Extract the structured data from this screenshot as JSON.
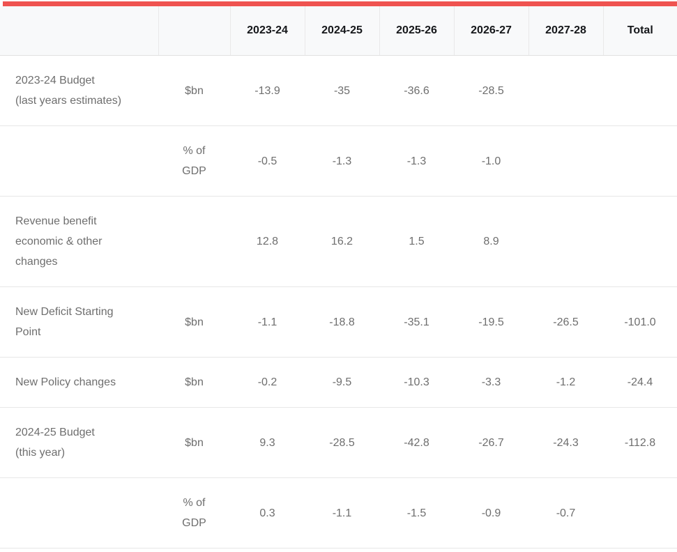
{
  "accent_color": "#ef5350",
  "table": {
    "columns": [
      "",
      "",
      "2023-24",
      "2024-25",
      "2025-26",
      "2026-27",
      "2027-28",
      "Total"
    ],
    "rows": [
      {
        "label": "2023-24 Budget\n(last years estimates)",
        "unit": "$bn",
        "values": [
          "-13.9",
          "-35",
          "-36.6",
          "-28.5",
          "",
          ""
        ]
      },
      {
        "label": "",
        "unit": "% of\nGDP",
        "values": [
          "-0.5",
          "-1.3",
          "-1.3",
          "-1.0",
          "",
          ""
        ]
      },
      {
        "label": "Revenue benefit\neconomic & other\nchanges",
        "unit": "",
        "values": [
          "12.8",
          "16.2",
          "1.5",
          "8.9",
          "",
          ""
        ]
      },
      {
        "label": "New Deficit Starting\nPoint",
        "unit": "$bn",
        "values": [
          "-1.1",
          "-18.8",
          "-35.1",
          "-19.5",
          "-26.5",
          "-101.0"
        ]
      },
      {
        "label": "New Policy changes",
        "unit": "$bn",
        "values": [
          "-0.2",
          "-9.5",
          "-10.3",
          "-3.3",
          "-1.2",
          "-24.4"
        ]
      },
      {
        "label": "2024-25 Budget\n(this year)",
        "unit": "$bn",
        "values": [
          "9.3",
          "-28.5",
          "-42.8",
          "-26.7",
          "-24.3",
          "-112.8"
        ]
      },
      {
        "label": "",
        "unit": "% of\nGDP",
        "values": [
          "0.3",
          "-1.1",
          "-1.5",
          "-0.9",
          "-0.7",
          ""
        ]
      }
    ]
  },
  "chart_data": {
    "type": "table",
    "categories": [
      "2023-24",
      "2024-25",
      "2025-26",
      "2026-27",
      "2027-28",
      "Total"
    ],
    "series": [
      {
        "name": "2023-24 Budget (last years estimates)",
        "unit": "$bn",
        "values": [
          -13.9,
          -35,
          -36.6,
          -28.5,
          null,
          null
        ]
      },
      {
        "name": "",
        "unit": "% of GDP",
        "values": [
          -0.5,
          -1.3,
          -1.3,
          -1.0,
          null,
          null
        ]
      },
      {
        "name": "Revenue benefit economic & other changes",
        "unit": "",
        "values": [
          12.8,
          16.2,
          1.5,
          8.9,
          null,
          null
        ]
      },
      {
        "name": "New Deficit Starting Point",
        "unit": "$bn",
        "values": [
          -1.1,
          -18.8,
          -35.1,
          -19.5,
          -26.5,
          -101.0
        ]
      },
      {
        "name": "New Policy changes",
        "unit": "$bn",
        "values": [
          -0.2,
          -9.5,
          -10.3,
          -3.3,
          -1.2,
          -24.4
        ]
      },
      {
        "name": "2024-25 Budget (this year)",
        "unit": "$bn",
        "values": [
          9.3,
          -28.5,
          -42.8,
          -26.7,
          -24.3,
          -112.8
        ]
      },
      {
        "name": "",
        "unit": "% of GDP",
        "values": [
          0.3,
          -1.1,
          -1.5,
          -0.9,
          -0.7,
          null
        ]
      }
    ],
    "title": "",
    "legend": "none",
    "grid": "horizontal-row-separators"
  }
}
